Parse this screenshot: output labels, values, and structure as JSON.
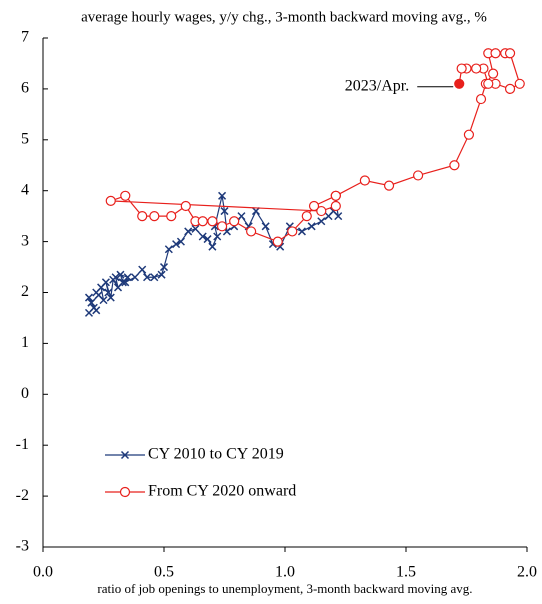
{
  "chart_data": {
    "type": "line",
    "title": "average hourly wages, y/y chg., 3-month backward moving avg., %",
    "x_label": "ratio of job openings to unemployment, 3-month backward moving avg.",
    "xlim": [
      0,
      2
    ],
    "xticks": [
      {
        "value": 0,
        "label": "0.0"
      },
      0.5,
      {
        "value": 1,
        "label": "1.0"
      },
      1.5,
      {
        "value": 2,
        "label": "2.0"
      }
    ],
    "ylim": [
      -3,
      7
    ],
    "yticks": [
      -3,
      -2,
      -1,
      0,
      1,
      2,
      3,
      4,
      5,
      6,
      7
    ],
    "legend": "lower left",
    "series": [
      {
        "name": "CY 2010 to CY 2019",
        "color": "#1f3a7a",
        "marker": "x",
        "x": [
          0.19,
          0.21,
          0.19,
          0.22,
          0.2,
          0.23,
          0.22,
          0.25,
          0.24,
          0.27,
          0.26,
          0.28,
          0.29,
          0.31,
          0.3,
          0.33,
          0.32,
          0.35,
          0.34,
          0.38,
          0.41,
          0.43,
          0.46,
          0.49,
          0.5,
          0.52,
          0.55,
          0.57,
          0.6,
          0.63,
          0.66,
          0.68,
          0.7,
          0.72,
          0.71,
          0.74,
          0.75,
          0.76,
          0.79,
          0.82,
          0.85,
          0.88,
          0.92,
          0.95,
          0.98,
          1.02,
          1.07,
          1.11,
          1.15,
          1.18,
          1.2,
          1.22,
          1.21
        ],
        "values": [
          1.6,
          1.7,
          1.9,
          1.65,
          1.8,
          1.95,
          2.0,
          1.85,
          2.1,
          2.0,
          2.2,
          1.9,
          2.25,
          2.1,
          2.3,
          2.2,
          2.35,
          2.3,
          2.2,
          2.3,
          2.45,
          2.3,
          2.3,
          2.35,
          2.5,
          2.85,
          2.95,
          3.0,
          3.2,
          3.25,
          3.1,
          3.05,
          2.9,
          3.1,
          3.3,
          3.9,
          3.6,
          3.2,
          3.3,
          3.5,
          3.3,
          3.6,
          3.3,
          2.95,
          2.9,
          3.3,
          3.2,
          3.3,
          3.4,
          3.5,
          3.6,
          3.5,
          3.8
        ]
      },
      {
        "name": "From CY 2020 onward",
        "color": "#e8201c",
        "marker": "o",
        "x": [
          1.21,
          1.21,
          1.15,
          0.28,
          0.34,
          0.41,
          0.46,
          0.53,
          0.59,
          0.63,
          0.66,
          0.7,
          0.74,
          0.79,
          0.86,
          0.97,
          1.03,
          1.09,
          1.12,
          1.21,
          1.33,
          1.43,
          1.55,
          1.7,
          1.76,
          1.81,
          1.83,
          1.86,
          1.84,
          1.87,
          1.91,
          1.93,
          1.97,
          1.93,
          1.87,
          1.84,
          1.82,
          1.79,
          1.75,
          1.73,
          1.72
        ],
        "values": [
          3.9,
          3.7,
          3.6,
          3.8,
          3.9,
          3.5,
          3.5,
          3.5,
          3.7,
          3.4,
          3.4,
          3.4,
          3.3,
          3.4,
          3.2,
          3.0,
          3.2,
          3.5,
          3.7,
          3.9,
          4.2,
          4.1,
          4.3,
          4.5,
          5.1,
          5.8,
          6.1,
          6.3,
          6.7,
          6.7,
          6.7,
          6.7,
          6.1,
          6.0,
          6.1,
          6.1,
          6.4,
          6.4,
          6.4,
          6.4,
          6.1
        ]
      }
    ],
    "annotation": "2023/Apr."
  }
}
